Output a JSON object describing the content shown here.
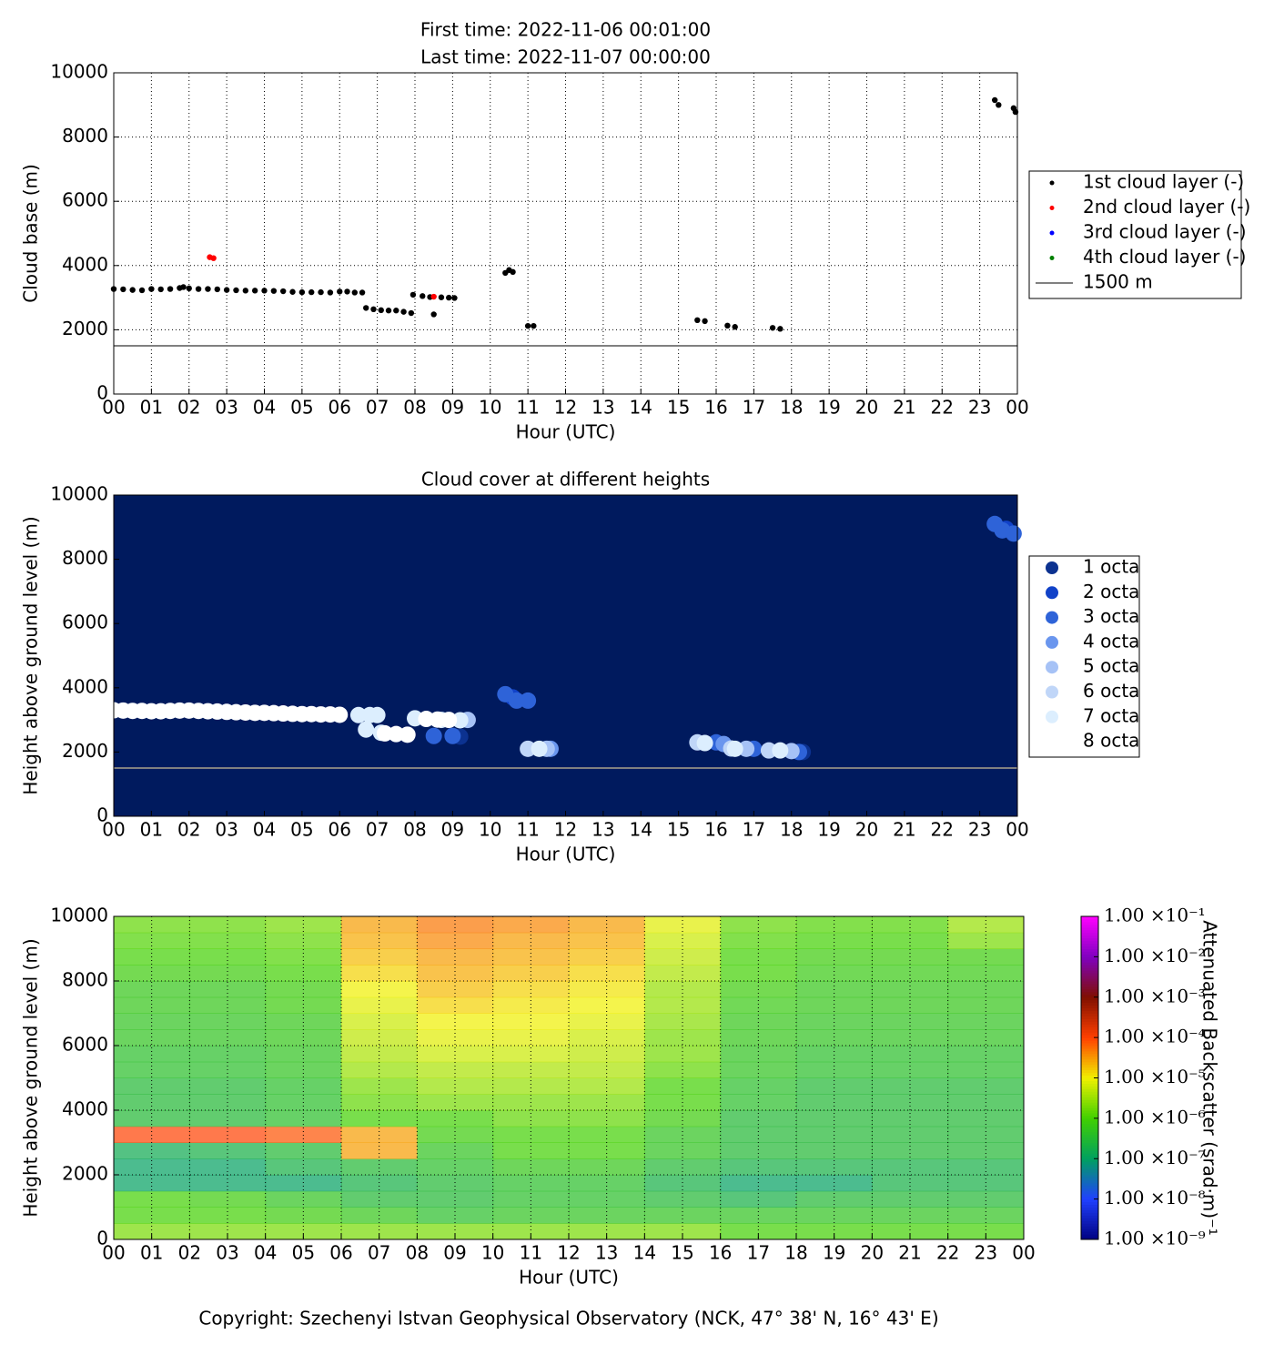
{
  "chart_data": [
    {
      "type": "scatter",
      "title": "First time: 2022-11-06 00:01:00",
      "subtitle": "Last time: 2022-11-07 00:00:00",
      "xlabel": "Hour (UTC)",
      "ylabel": "Cloud base (m)",
      "xlim": [
        0,
        24
      ],
      "ylim": [
        0,
        10000
      ],
      "xticks": [
        {
          "value": 0,
          "label": "00"
        },
        {
          "value": 1,
          "label": "01"
        },
        {
          "value": 2,
          "label": "02"
        },
        {
          "value": 3,
          "label": "03"
        },
        {
          "value": 4,
          "label": "04"
        },
        {
          "value": 5,
          "label": "05"
        },
        {
          "value": 6,
          "label": "06"
        },
        {
          "value": 7,
          "label": "07"
        },
        {
          "value": 8,
          "label": "08"
        },
        {
          "value": 9,
          "label": "09"
        },
        10,
        11,
        12,
        13,
        14,
        15,
        16,
        17,
        18,
        19,
        20,
        21,
        22,
        23,
        {
          "value": 24,
          "label": "00"
        }
      ],
      "yticks": [
        0,
        2000,
        4000,
        6000,
        8000,
        10000
      ],
      "grid": true,
      "legend": "right",
      "series": [
        {
          "name": "1st cloud layer (-)",
          "color": "#000000",
          "x": [
            0,
            0.25,
            0.5,
            0.75,
            1,
            1.25,
            1.5,
            1.75,
            1.85,
            2,
            2.25,
            2.5,
            2.75,
            3,
            3.25,
            3.5,
            3.75,
            4,
            4.25,
            4.5,
            4.75,
            5,
            5.25,
            5.5,
            5.75,
            6,
            6.2,
            6.4,
            6.6,
            6.7,
            6.9,
            7.1,
            7.3,
            7.5,
            7.7,
            7.9,
            7.95,
            8.2,
            8.4,
            8.5,
            8.7,
            8.9,
            9.05,
            10.4,
            10.5,
            10.6,
            11.0,
            11.15,
            15.5,
            15.7,
            16.3,
            16.5,
            17.5,
            17.7,
            23.4,
            23.5,
            23.9,
            23.95
          ],
          "y": [
            3270,
            3260,
            3240,
            3230,
            3270,
            3260,
            3270,
            3300,
            3330,
            3290,
            3270,
            3270,
            3260,
            3240,
            3230,
            3220,
            3220,
            3220,
            3210,
            3200,
            3180,
            3170,
            3170,
            3170,
            3160,
            3190,
            3190,
            3160,
            3160,
            2680,
            2640,
            2610,
            2600,
            2600,
            2560,
            2520,
            3090,
            3050,
            3020,
            2480,
            3010,
            3000,
            2990,
            3770,
            3860,
            3800,
            2120,
            2120,
            2300,
            2270,
            2130,
            2090,
            2060,
            2030,
            9150,
            9000,
            8900,
            8780
          ]
        },
        {
          "name": "2nd cloud layer (-)",
          "color": "#ff0000",
          "x": [
            2.55,
            2.65,
            8.5
          ],
          "y": [
            4260,
            4230,
            3030
          ]
        },
        {
          "name": "3rd cloud layer (-)",
          "color": "#0000ff",
          "x": [],
          "y": []
        },
        {
          "name": "4th cloud layer (-)",
          "color": "#008000",
          "x": [],
          "y": []
        }
      ],
      "reference_lines": [
        {
          "name": "1500 m",
          "value": 1500,
          "color": "#808080"
        }
      ]
    },
    {
      "type": "scatter",
      "title": "Cloud cover at different heights",
      "xlabel": "Hour (UTC)",
      "ylabel": "Height above ground level (m)",
      "xlim": [
        0,
        24
      ],
      "ylim": [
        0,
        10000
      ],
      "xticks": [
        {
          "value": 0,
          "label": "00"
        },
        {
          "value": 1,
          "label": "01"
        },
        {
          "value": 2,
          "label": "02"
        },
        {
          "value": 3,
          "label": "03"
        },
        {
          "value": 4,
          "label": "04"
        },
        {
          "value": 5,
          "label": "05"
        },
        {
          "value": 6,
          "label": "06"
        },
        {
          "value": 7,
          "label": "07"
        },
        {
          "value": 8,
          "label": "08"
        },
        {
          "value": 9,
          "label": "09"
        },
        10,
        11,
        12,
        13,
        14,
        15,
        16,
        17,
        18,
        19,
        20,
        21,
        22,
        23,
        {
          "value": 24,
          "label": "00"
        }
      ],
      "yticks": [
        0,
        2000,
        4000,
        6000,
        8000,
        10000
      ],
      "grid": false,
      "legend": "right",
      "background": "#001a5e",
      "series": [
        {
          "name": "1 octa",
          "color": "#0c3290",
          "x": [
            9.2,
            18.3
          ],
          "y": [
            2480,
            2000
          ]
        },
        {
          "name": "2 octa",
          "color": "#1142c8",
          "x": [
            10.6,
            23.7
          ],
          "y": [
            3700,
            8950
          ]
        },
        {
          "name": "3 octa",
          "color": "#2e63d8",
          "x": [
            10.4,
            10.7,
            11.0,
            16.0,
            17.0,
            18.2,
            23.4,
            23.6,
            23.9,
            8.5,
            9.0
          ],
          "y": [
            3800,
            3600,
            3600,
            2300,
            2100,
            2000,
            9100,
            8900,
            8800,
            2500,
            2500
          ]
        },
        {
          "name": "4 octa",
          "color": "#6a96ee",
          "x": [
            11.6,
            16.2
          ],
          "y": [
            2100,
            2250
          ]
        },
        {
          "name": "5 octa",
          "color": "#a6c2f6",
          "x": [
            9.4,
            11.5,
            16.8,
            18.0
          ],
          "y": [
            3000,
            2100,
            2100,
            2030
          ]
        },
        {
          "name": "6 octa",
          "color": "#c0d6f8",
          "x": [
            15.5,
            16.4,
            17.4,
            11.0
          ],
          "y": [
            2300,
            2110,
            2050,
            2100
          ]
        },
        {
          "name": "7 octa",
          "color": "#dceefe",
          "x": [
            6.5,
            6.8,
            7.0,
            8.0,
            8.7,
            9.2,
            11.3,
            15.7,
            16.5,
            17.7,
            6.7,
            7.1
          ],
          "y": [
            3150,
            3150,
            3150,
            3050,
            3000,
            2990,
            2100,
            2280,
            2100,
            2050,
            2700,
            2600
          ]
        },
        {
          "name": "8 octa",
          "color": "#ffffff",
          "x": [
            0,
            0.25,
            0.5,
            0.75,
            1,
            1.25,
            1.5,
            1.75,
            2,
            2.25,
            2.5,
            2.75,
            3,
            3.25,
            3.5,
            3.75,
            4,
            4.25,
            4.5,
            4.75,
            5,
            5.25,
            5.5,
            5.75,
            6,
            7.2,
            7.5,
            7.8,
            8.3,
            8.6,
            8.9
          ],
          "y": [
            3300,
            3290,
            3280,
            3280,
            3270,
            3270,
            3280,
            3290,
            3290,
            3280,
            3270,
            3260,
            3250,
            3240,
            3230,
            3220,
            3220,
            3210,
            3200,
            3190,
            3180,
            3180,
            3170,
            3170,
            3160,
            2580,
            2560,
            2540,
            3030,
            3010,
            3000
          ]
        }
      ],
      "reference_lines": [
        {
          "value": 1500,
          "color": "#808080"
        }
      ]
    },
    {
      "type": "heatmap",
      "xlabel": "Hour (UTC)",
      "ylabel": "Height above ground level (m)",
      "xlim": [
        0,
        24
      ],
      "ylim": [
        0,
        10000
      ],
      "xticks": [
        {
          "value": 0,
          "label": "00"
        },
        {
          "value": 1,
          "label": "01"
        },
        {
          "value": 2,
          "label": "02"
        },
        {
          "value": 3,
          "label": "03"
        },
        {
          "value": 4,
          "label": "04"
        },
        {
          "value": 5,
          "label": "05"
        },
        {
          "value": 6,
          "label": "06"
        },
        {
          "value": 7,
          "label": "07"
        },
        {
          "value": 8,
          "label": "08"
        },
        {
          "value": 9,
          "label": "09"
        },
        10,
        11,
        12,
        13,
        14,
        15,
        16,
        17,
        18,
        19,
        20,
        21,
        22,
        23,
        {
          "value": 24,
          "label": "00"
        }
      ],
      "yticks": [
        0,
        2000,
        4000,
        6000,
        8000,
        10000
      ],
      "grid": true,
      "xbins": [
        0,
        2,
        4,
        6,
        8,
        10,
        12,
        14,
        16,
        18,
        20,
        22,
        24
      ],
      "ybins": [
        0,
        500,
        1000,
        1500,
        2000,
        2500,
        3000,
        3500,
        4000,
        4500,
        5000,
        5500,
        6000,
        6500,
        7000,
        7500,
        8000,
        8500,
        9000,
        9500,
        10000
      ],
      "values": [
        [
          2e-06,
          2e-06,
          2e-06,
          2e-06,
          2e-06,
          2e-06,
          2e-06,
          2e-06,
          1e-06,
          1e-06,
          1e-06,
          1e-06
        ],
        [
          1e-06,
          1e-06,
          8e-07,
          6e-07,
          4e-07,
          5e-07,
          5e-07,
          5e-07,
          5e-07,
          5e-07,
          5e-07,
          5e-07
        ],
        [
          1e-06,
          8e-07,
          5e-07,
          3e-07,
          3e-07,
          4e-07,
          4e-07,
          3e-07,
          2e-07,
          3e-07,
          3e-07,
          3e-07
        ],
        [
          1e-07,
          1e-07,
          1e-07,
          2e-07,
          3e-07,
          4e-07,
          4e-07,
          2e-07,
          1e-07,
          1e-07,
          2e-07,
          2e-07
        ],
        [
          1e-07,
          1e-07,
          2e-07,
          3e-07,
          4e-07,
          6e-07,
          6e-07,
          3e-07,
          2e-07,
          2e-07,
          2e-07,
          2e-07
        ],
        [
          1.5e-07,
          2e-07,
          3e-07,
          3e-05,
          5e-07,
          1e-06,
          1e-06,
          5e-07,
          3e-07,
          3e-07,
          3e-07,
          3e-07
        ],
        [
          0.0001,
          0.0001,
          8e-05,
          3e-05,
          8e-07,
          1e-06,
          1e-06,
          5e-07,
          3e-07,
          3e-07,
          3e-07,
          3e-07
        ],
        [
          3e-07,
          3e-07,
          4e-07,
          1e-06,
          1e-06,
          1.5e-06,
          1.5e-06,
          8e-07,
          3e-07,
          3e-07,
          3e-07,
          3e-07
        ],
        [
          3e-07,
          3e-07,
          4e-07,
          1.5e-06,
          2e-06,
          2e-06,
          2e-06,
          1e-06,
          4e-07,
          3e-07,
          3e-07,
          3e-07
        ],
        [
          3e-07,
          3e-07,
          4e-07,
          2e-06,
          3e-06,
          3e-06,
          3e-06,
          1e-06,
          4e-07,
          3e-07,
          3e-07,
          3e-07
        ],
        [
          4e-07,
          4e-07,
          5e-07,
          3e-06,
          4e-06,
          4e-06,
          4e-06,
          1.5e-06,
          5e-07,
          4e-07,
          4e-07,
          4e-07
        ],
        [
          4e-07,
          4e-07,
          5e-07,
          4e-06,
          6e-06,
          6e-06,
          5e-06,
          2e-06,
          5e-07,
          4e-07,
          4e-07,
          4e-07
        ],
        [
          5e-07,
          5e-07,
          6e-07,
          5e-06,
          8e-06,
          8e-06,
          6e-06,
          2e-06,
          6e-07,
          5e-07,
          5e-07,
          5e-07
        ],
        [
          5e-07,
          5e-07,
          6e-07,
          6e-06,
          1e-05,
          1e-05,
          8e-06,
          2.5e-06,
          6e-07,
          5e-07,
          5e-07,
          5e-07
        ],
        [
          6e-07,
          6e-07,
          8e-07,
          8e-06,
          1.5e-05,
          1.2e-05,
          1e-05,
          3e-06,
          7e-07,
          6e-07,
          6e-07,
          6e-07
        ],
        [
          6e-07,
          6e-07,
          8e-07,
          1e-05,
          2e-05,
          1.5e-05,
          1.2e-05,
          3e-06,
          8e-07,
          6e-07,
          6e-07,
          6e-07
        ],
        [
          8e-07,
          8e-07,
          1e-06,
          1.5e-05,
          2.5e-05,
          2e-05,
          1.5e-05,
          4e-06,
          1e-06,
          7e-07,
          7e-07,
          7e-07
        ],
        [
          1e-06,
          1e-06,
          1.2e-06,
          2e-05,
          3e-05,
          2.5e-05,
          2e-05,
          5e-06,
          1e-06,
          8e-07,
          8e-07,
          8e-07
        ],
        [
          1.2e-06,
          1.2e-06,
          1.5e-06,
          2.5e-05,
          4e-05,
          3e-05,
          2.5e-05,
          6e-06,
          1.2e-06,
          1e-06,
          1e-06,
          2e-06
        ],
        [
          1.5e-06,
          1.5e-06,
          2e-06,
          3e-05,
          5e-05,
          4e-05,
          3e-05,
          8e-06,
          1.5e-06,
          1.2e-06,
          1.2e-06,
          3e-06
        ]
      ],
      "color_scale": "log",
      "clim": [
        1e-09,
        0.1
      ],
      "colormap": [
        "#000080",
        "#2040ff",
        "#00a060",
        "#40d000",
        "#f0f000",
        "#ff4000",
        "#801000",
        "#8000c0",
        "#ff00ff"
      ],
      "cticks": [
        {
          "value": 1e-09,
          "label": "1.00 ×10⁻⁹"
        },
        {
          "value": 1e-08,
          "label": "1.00 ×10⁻⁸"
        },
        {
          "value": 1e-07,
          "label": "1.00 ×10⁻⁷"
        },
        {
          "value": 1e-06,
          "label": "1.00 ×10⁻⁶"
        },
        {
          "value": 1e-05,
          "label": "1.00 ×10⁻⁵"
        },
        {
          "value": 0.0001,
          "label": "1.00 ×10⁻⁴"
        },
        {
          "value": 0.001,
          "label": "1.00 ×10⁻³"
        },
        {
          "value": 0.01,
          "label": "1.00 ×10⁻²"
        },
        {
          "value": 0.1,
          "label": "1.00 ×10⁻¹"
        }
      ],
      "colorbar_label": "Attenuated Backscatter (srad·m)⁻¹"
    }
  ],
  "footer": "Copyright: Szechenyi Istvan Geophysical Observatory (NCK, 47° 38' N, 16° 43' E)"
}
